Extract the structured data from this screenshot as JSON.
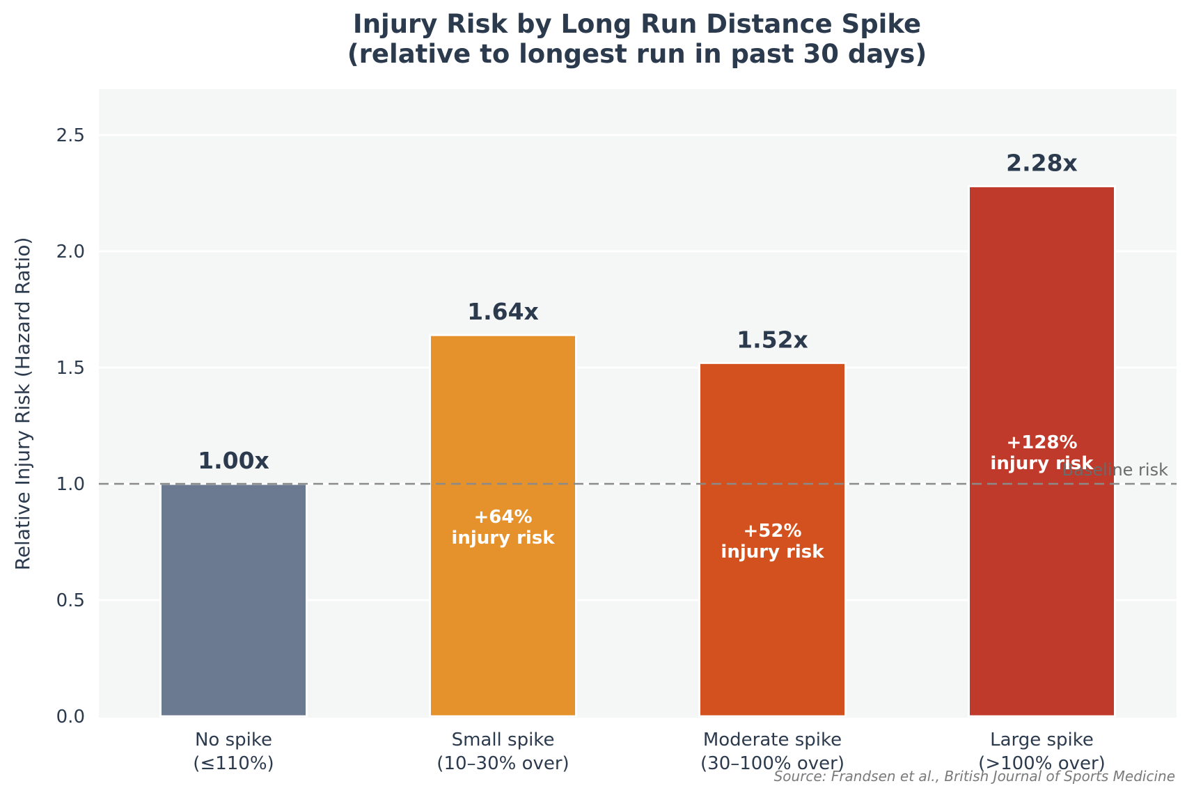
{
  "chart_data": {
    "type": "bar",
    "title_line1": "Injury Risk by Long Run Distance Spike",
    "title_line2": "(relative to longest run in past 30 days)",
    "ylabel": "Relative Injury Risk (Hazard Ratio)",
    "ylim": [
      0,
      2.7
    ],
    "yticks": [
      "0.0",
      "0.5",
      "1.0",
      "1.5",
      "2.0",
      "2.5"
    ],
    "grid": true,
    "categories": [
      [
        "No spike",
        "(≤110%)"
      ],
      [
        "Small spike",
        "(10–30% over)"
      ],
      [
        "Moderate spike",
        "(30–100% over)"
      ],
      [
        "Large spike",
        "(>100% over)"
      ]
    ],
    "values": [
      1.0,
      1.64,
      1.52,
      2.28
    ],
    "value_labels": [
      "1.00x",
      "1.64x",
      "1.52x",
      "2.28x"
    ],
    "inner_labels": [
      null,
      [
        "+64%",
        "injury risk"
      ],
      [
        "+52%",
        "injury risk"
      ],
      [
        "+128%",
        "injury risk"
      ]
    ],
    "colors": [
      "#6b7a90",
      "#e5922c",
      "#d3511e",
      "#bf3a2b"
    ],
    "baseline": {
      "value": 1.0,
      "label": "Baseline risk",
      "color": "#8a8a8a"
    },
    "source": "Source: Frandsen et al., British Journal of Sports Medicine"
  }
}
